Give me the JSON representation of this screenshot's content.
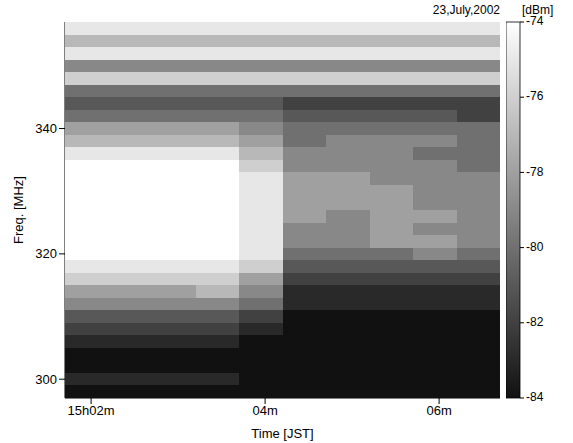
{
  "chart_data": {
    "type": "heatmap",
    "title": "23,July,2002",
    "x_label": "Time [JST]",
    "y_label": "Freq. [MHz]",
    "xlim": [
      1.7,
      6.7
    ],
    "xticks": [
      {
        "value": 2,
        "label": "15h02m"
      },
      {
        "value": 4,
        "label": "04m"
      },
      {
        "value": 6,
        "label": "06m"
      }
    ],
    "ylim": [
      297,
      357
    ],
    "yticks": [
      300,
      320,
      340
    ],
    "cells": {
      "x": [
        1.95,
        2.45,
        2.95,
        3.45,
        3.95,
        4.45,
        4.95,
        5.45,
        5.95,
        6.45
      ],
      "y": [
        298,
        300,
        302,
        304,
        306,
        308,
        310,
        312,
        314,
        316,
        318,
        320,
        322,
        324,
        326,
        328,
        330,
        332,
        334,
        336,
        338,
        340,
        342,
        344,
        346,
        348,
        350,
        352,
        354,
        356
      ],
      "values": [
        [
          -84,
          -84,
          -84,
          -84,
          -84,
          -84,
          -84,
          -84,
          -84,
          -84
        ],
        [
          -83,
          -83,
          -83,
          -83,
          -84,
          -84,
          -84,
          -84,
          -84,
          -84
        ],
        [
          -84,
          -84,
          -84,
          -84,
          -84,
          -84,
          -84,
          -84,
          -84,
          -84
        ],
        [
          -84,
          -84,
          -84,
          -84,
          -84,
          -84,
          -84,
          -84,
          -84,
          -84
        ],
        [
          -83,
          -83,
          -83,
          -83,
          -84,
          -84,
          -84,
          -84,
          -84,
          -84
        ],
        [
          -82,
          -82,
          -82,
          -82,
          -83,
          -84,
          -84,
          -84,
          -84,
          -84
        ],
        [
          -81,
          -81,
          -81,
          -81,
          -82,
          -84,
          -84,
          -84,
          -84,
          -84
        ],
        [
          -79,
          -79,
          -79,
          -79,
          -80,
          -83,
          -83,
          -83,
          -83,
          -83
        ],
        [
          -78,
          -78,
          -78,
          -77,
          -79,
          -83,
          -83,
          -83,
          -83,
          -83
        ],
        [
          -76,
          -76,
          -76,
          -76,
          -78,
          -82,
          -82,
          -82,
          -82,
          -82
        ],
        [
          -75,
          -75,
          -75,
          -75,
          -76,
          -81,
          -81,
          -81,
          -81,
          -81
        ],
        [
          -74,
          -74,
          -74,
          -74,
          -75,
          -80,
          -80,
          -80,
          -79,
          -80
        ],
        [
          -74,
          -74,
          -74,
          -74,
          -75,
          -79,
          -79,
          -78,
          -78,
          -79
        ],
        [
          -74,
          -74,
          -74,
          -74,
          -75,
          -79,
          -79,
          -78,
          -79,
          -79
        ],
        [
          -74,
          -74,
          -74,
          -74,
          -75,
          -78,
          -79,
          -78,
          -78,
          -79
        ],
        [
          -74,
          -74,
          -74,
          -74,
          -75,
          -78,
          -78,
          -78,
          -79,
          -79
        ],
        [
          -74,
          -74,
          -74,
          -74,
          -75,
          -78,
          -78,
          -78,
          -79,
          -79
        ],
        [
          -74,
          -74,
          -74,
          -74,
          -75,
          -78,
          -78,
          -79,
          -79,
          -79
        ],
        [
          -74,
          -74,
          -74,
          -74,
          -76,
          -79,
          -79,
          -79,
          -79,
          -80
        ],
        [
          -75,
          -75,
          -75,
          -75,
          -77,
          -79,
          -79,
          -79,
          -80,
          -80
        ],
        [
          -77,
          -77,
          -77,
          -77,
          -78,
          -80,
          -79,
          -79,
          -79,
          -80
        ],
        [
          -78,
          -78,
          -78,
          -78,
          -79,
          -80,
          -80,
          -80,
          -80,
          -80
        ],
        [
          -80,
          -80,
          -80,
          -80,
          -80,
          -81,
          -81,
          -81,
          -81,
          -82
        ],
        [
          -81,
          -81,
          -81,
          -81,
          -81,
          -82,
          -82,
          -82,
          -82,
          -82
        ],
        [
          -80,
          -80,
          -80,
          -80,
          -80,
          -80,
          -80,
          -80,
          -80,
          -80
        ],
        [
          -76,
          -76,
          -76,
          -76,
          -76,
          -76,
          -76,
          -76,
          -76,
          -76
        ],
        [
          -79,
          -79,
          -79,
          -79,
          -79,
          -79,
          -79,
          -79,
          -79,
          -79
        ],
        [
          -75,
          -75,
          -75,
          -75,
          -75,
          -75,
          -75,
          -75,
          -75,
          -75
        ],
        [
          -77,
          -77,
          -77,
          -77,
          -77,
          -77,
          -77,
          -77,
          -77,
          -77
        ],
        [
          -75,
          -75,
          -75,
          -75,
          -75,
          -75,
          -75,
          -75,
          -75,
          -75
        ]
      ]
    },
    "colorbar": {
      "label": "[dBm]",
      "range": [
        -84,
        -74
      ],
      "ticks": [
        -74,
        -76,
        -78,
        -80,
        -82,
        -84
      ]
    }
  }
}
